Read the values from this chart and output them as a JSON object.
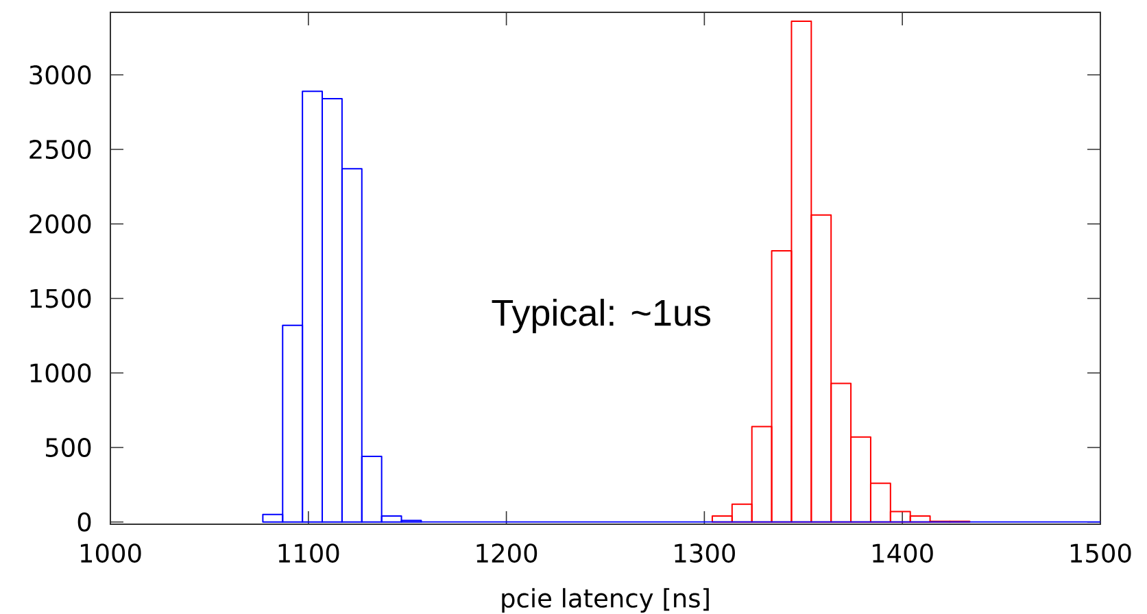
{
  "chart_data": {
    "type": "histogram",
    "xlabel": "pcie latency [ns]",
    "annotations": [
      "Typical: ~1us"
    ],
    "bins": [
      1077,
      1087,
      1097,
      1107,
      1117,
      1127,
      1137,
      1147,
      1157
    ],
    "series": [
      {
        "color": "#ff0000",
        "bins": [
          1304,
          1314,
          1324,
          1334,
          1344,
          1354,
          1364,
          1374,
          1384,
          1394,
          1404,
          1414,
          1424,
          1434
        ],
        "values": [
          40,
          120,
          640,
          1820,
          3360,
          2060,
          930,
          570,
          260,
          70,
          40,
          5,
          5
        ]
      },
      {
        "color": "#0000ff",
        "values": [
          50,
          1320,
          2890,
          2840,
          2370,
          440,
          40,
          10
        ]
      },
      {
        "type": "line",
        "color": "#0000ff",
        "x": [
          1157,
          1500
        ],
        "values": [
          0,
          0
        ]
      }
    ],
    "xlim": [
      1000,
      1500
    ],
    "ylim": [
      -15,
      3420
    ],
    "xticks": [
      1000,
      1100,
      1200,
      1300,
      1400,
      1500
    ],
    "yticks": [
      0,
      500,
      1000,
      1500,
      2000,
      2500,
      3000
    ]
  }
}
